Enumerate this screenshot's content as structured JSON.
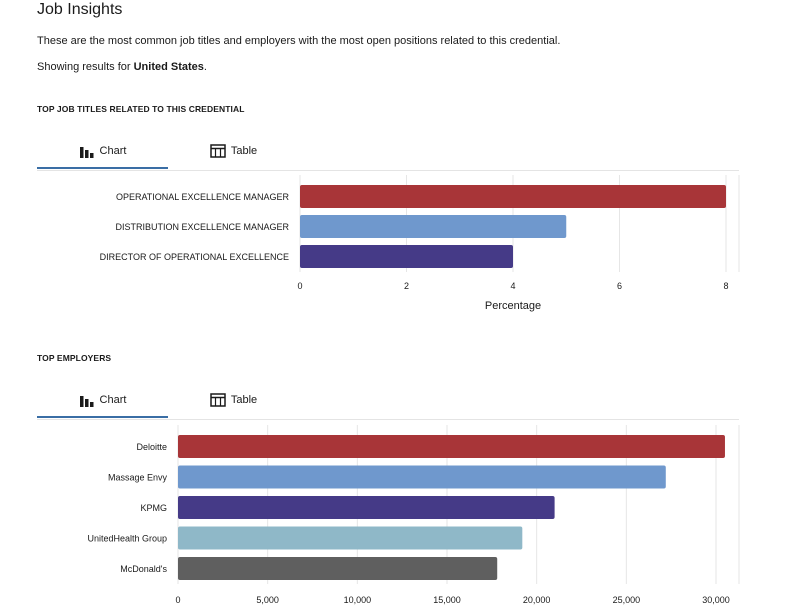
{
  "page": {
    "title": "Job Insights",
    "intro": "These are the most common job titles and employers with the most open positions related to this credential.",
    "showing_prefix": "Showing results for ",
    "showing_location": "United States",
    "showing_suffix": "."
  },
  "sections": [
    {
      "heading": "TOP JOB TITLES RELATED TO THIS CREDENTIAL",
      "tabs": {
        "chart": "Chart",
        "table": "Table",
        "active": "chart"
      }
    },
    {
      "heading": "TOP EMPLOYERS",
      "tabs": {
        "chart": "Chart",
        "table": "Table",
        "active": "chart"
      }
    }
  ],
  "icons": {
    "chart": "bar-chart-icon",
    "table": "table-icon"
  },
  "colors": {
    "active_tab_underline": "#3a6ea5"
  },
  "chart_data": [
    {
      "type": "bar",
      "orientation": "horizontal",
      "categories": [
        "OPERATIONAL EXCELLENCE MANAGER",
        "DISTRIBUTION EXCELLENCE MANAGER",
        "DIRECTOR OF OPERATIONAL EXCELLENCE"
      ],
      "values": [
        8.0,
        5.0,
        4.0
      ],
      "colors": [
        "#a83538",
        "#6f98cd",
        "#453a87"
      ],
      "xlabel": "Percentage",
      "xlim": [
        0,
        8
      ],
      "xticks": [
        0,
        2,
        4,
        6,
        8
      ],
      "xtick_labels": [
        "0",
        "2",
        "4",
        "6",
        "8"
      ],
      "grid": true
    },
    {
      "type": "bar",
      "orientation": "horizontal",
      "categories": [
        "Deloitte",
        "Massage Envy",
        "KPMG",
        "UnitedHealth Group",
        "McDonald's"
      ],
      "values": [
        30500,
        27200,
        21000,
        19200,
        17800
      ],
      "colors": [
        "#a83538",
        "#6f98cd",
        "#453a87",
        "#8fb8c8",
        "#5f5f5f"
      ],
      "xlabel": "",
      "xlim": [
        0,
        30000
      ],
      "xticks": [
        0,
        5000,
        10000,
        15000,
        20000,
        25000,
        30000
      ],
      "xtick_labels": [
        "0",
        "5,000",
        "10,000",
        "15,000",
        "20,000",
        "25,000",
        "30,000"
      ],
      "grid": true
    }
  ]
}
